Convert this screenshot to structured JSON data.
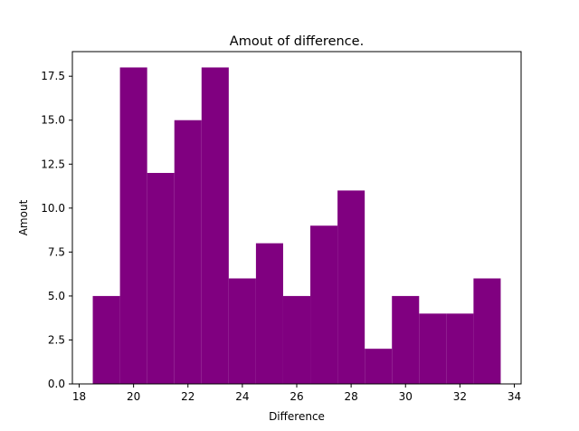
{
  "chart_data": {
    "type": "bar",
    "title": "Amout of difference.",
    "xlabel": "Difference",
    "ylabel": "Amout",
    "bins": [
      {
        "x0": 18.5,
        "x1": 19.5,
        "value": 5
      },
      {
        "x0": 19.5,
        "x1": 20.5,
        "value": 18
      },
      {
        "x0": 20.5,
        "x1": 21.5,
        "value": 12
      },
      {
        "x0": 21.5,
        "x1": 22.5,
        "value": 15
      },
      {
        "x0": 22.5,
        "x1": 23.5,
        "value": 18
      },
      {
        "x0": 23.5,
        "x1": 24.5,
        "value": 6
      },
      {
        "x0": 24.5,
        "x1": 25.5,
        "value": 8
      },
      {
        "x0": 25.5,
        "x1": 26.5,
        "value": 5
      },
      {
        "x0": 26.5,
        "x1": 27.5,
        "value": 9
      },
      {
        "x0": 27.5,
        "x1": 28.5,
        "value": 11
      },
      {
        "x0": 28.5,
        "x1": 29.5,
        "value": 2
      },
      {
        "x0": 29.5,
        "x1": 30.5,
        "value": 5
      },
      {
        "x0": 30.5,
        "x1": 31.5,
        "value": 4
      },
      {
        "x0": 31.5,
        "x1": 32.5,
        "value": 4
      },
      {
        "x0": 32.5,
        "x1": 33.5,
        "value": 6
      }
    ],
    "xlim": [
      17.75,
      34.25
    ],
    "ylim": [
      0,
      18.9
    ],
    "xticks": [
      18,
      20,
      22,
      24,
      26,
      28,
      30,
      32,
      34
    ],
    "xtick_labels": [
      "18",
      "20",
      "22",
      "24",
      "26",
      "28",
      "30",
      "32",
      "34"
    ],
    "yticks": [
      0,
      2.5,
      5,
      7.5,
      10,
      12.5,
      15,
      17.5
    ],
    "ytick_labels": [
      "0.0",
      "2.5",
      "5.0",
      "7.5",
      "10.0",
      "12.5",
      "15.0",
      "17.5"
    ],
    "bar_color": "#800080",
    "grid": false
  }
}
